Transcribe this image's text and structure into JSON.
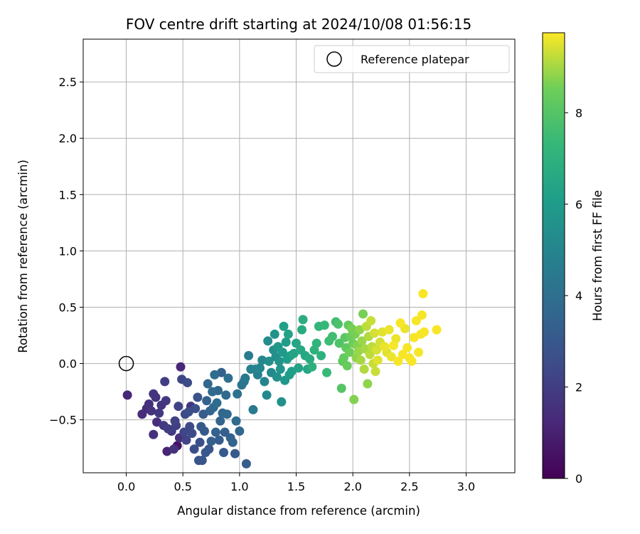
{
  "chart_data": {
    "type": "scatter",
    "title": "FOV centre drift starting at 2024/10/08 01:56:15",
    "xlabel": "Angular distance from reference (arcmin)",
    "ylabel": "Rotation from reference (arcmin)",
    "xlim": [
      -0.38,
      3.43
    ],
    "ylim": [
      -0.97,
      2.88
    ],
    "xticks": [
      0.0,
      0.5,
      1.0,
      1.5,
      2.0,
      2.5,
      3.0
    ],
    "yticks": [
      -0.5,
      0.0,
      0.5,
      1.0,
      1.5,
      2.0,
      2.5
    ],
    "xtick_labels": [
      "0.0",
      "0.5",
      "1.0",
      "1.5",
      "2.0",
      "2.5",
      "3.0"
    ],
    "ytick_labels": [
      "−0.5",
      "0.0",
      "0.5",
      "1.0",
      "1.5",
      "2.0",
      "2.5"
    ],
    "grid": true,
    "colormap": "viridis",
    "colorbar": {
      "label": "Hours from first FF file",
      "range": [
        0,
        9.75
      ],
      "ticks": [
        0,
        2,
        4,
        6,
        8
      ],
      "tick_labels": [
        "0",
        "2",
        "4",
        "6",
        "8"
      ]
    },
    "legend": {
      "position": "top-right",
      "entries": [
        {
          "label": "Reference platepar",
          "marker": "open-circle"
        }
      ]
    },
    "reference_point": {
      "x": 0.0,
      "y": 0.0
    },
    "points": [
      [
        0.01,
        -0.28,
        1.2
      ],
      [
        0.14,
        -0.45,
        1.4
      ],
      [
        0.18,
        -0.4,
        1.3
      ],
      [
        0.2,
        -0.36,
        1.5
      ],
      [
        0.22,
        -0.42,
        1.6
      ],
      [
        0.24,
        -0.63,
        1.5
      ],
      [
        0.24,
        -0.27,
        1.7
      ],
      [
        0.26,
        -0.3,
        1.6
      ],
      [
        0.27,
        -0.52,
        1.4
      ],
      [
        0.29,
        -0.44,
        1.8
      ],
      [
        0.31,
        -0.37,
        1.7
      ],
      [
        0.33,
        -0.55,
        1.9
      ],
      [
        0.34,
        -0.16,
        2.0
      ],
      [
        0.35,
        -0.33,
        1.8
      ],
      [
        0.36,
        -0.78,
        1.1
      ],
      [
        0.37,
        -0.58,
        2.0
      ],
      [
        0.4,
        -0.6,
        1.9
      ],
      [
        0.42,
        -0.76,
        1.6
      ],
      [
        0.43,
        -0.51,
        2.1
      ],
      [
        0.44,
        -0.55,
        2.0
      ],
      [
        0.45,
        -0.73,
        0.6
      ],
      [
        0.46,
        -0.38,
        2.2
      ],
      [
        0.47,
        -0.66,
        1.5
      ],
      [
        0.48,
        -0.03,
        1.2
      ],
      [
        0.49,
        -0.14,
        2.3
      ],
      [
        0.51,
        -0.61,
        2.3
      ],
      [
        0.52,
        -0.45,
        2.4
      ],
      [
        0.53,
        -0.68,
        2.2
      ],
      [
        0.54,
        -0.17,
        2.5
      ],
      [
        0.55,
        -0.43,
        2.6
      ],
      [
        0.56,
        -0.56,
        2.4
      ],
      [
        0.57,
        -0.38,
        1.7
      ],
      [
        0.58,
        -0.62,
        2.5
      ],
      [
        0.6,
        -0.76,
        2.6
      ],
      [
        0.61,
        -0.4,
        2.7
      ],
      [
        0.63,
        -0.3,
        2.8
      ],
      [
        0.64,
        -0.86,
        2.9
      ],
      [
        0.65,
        -0.7,
        2.7
      ],
      [
        0.66,
        -0.56,
        3.0
      ],
      [
        0.67,
        -0.86,
        2.8
      ],
      [
        0.68,
        -0.45,
        3.2
      ],
      [
        0.69,
        -0.6,
        3.1
      ],
      [
        0.7,
        -0.79,
        3.0
      ],
      [
        0.71,
        -0.33,
        3.4
      ],
      [
        0.72,
        -0.18,
        3.6
      ],
      [
        0.73,
        -0.76,
        2.9
      ],
      [
        0.74,
        -0.42,
        3.5
      ],
      [
        0.75,
        -0.69,
        3.3
      ],
      [
        0.76,
        -0.25,
        3.8
      ],
      [
        0.77,
        -0.39,
        3.7
      ],
      [
        0.78,
        -0.1,
        3.9
      ],
      [
        0.79,
        -0.61,
        3.4
      ],
      [
        0.8,
        -0.35,
        3.9
      ],
      [
        0.81,
        -0.24,
        3.7
      ],
      [
        0.82,
        -0.68,
        3.2
      ],
      [
        0.83,
        -0.51,
        3.5
      ],
      [
        0.84,
        -0.08,
        3.4
      ],
      [
        0.85,
        -0.44,
        3.6
      ],
      [
        0.86,
        -0.79,
        3.1
      ],
      [
        0.87,
        -0.61,
        3.3
      ],
      [
        0.88,
        -0.28,
        3.8
      ],
      [
        0.89,
        -0.45,
        3.7
      ],
      [
        0.9,
        -0.13,
        4.0
      ],
      [
        0.92,
        -0.66,
        3.4
      ],
      [
        0.94,
        -0.7,
        3.5
      ],
      [
        0.96,
        -0.8,
        3.1
      ],
      [
        0.97,
        -0.51,
        3.8
      ],
      [
        0.98,
        -0.27,
        4.1
      ],
      [
        1.0,
        -0.6,
        3.6
      ],
      [
        1.02,
        -0.19,
        4.2
      ],
      [
        1.04,
        -0.16,
        4.3
      ],
      [
        1.05,
        -0.13,
        4.4
      ],
      [
        1.06,
        -0.89,
        3.2
      ],
      [
        1.08,
        0.07,
        4.6
      ],
      [
        1.1,
        -0.05,
        4.8
      ],
      [
        1.12,
        -0.41,
        4.5
      ],
      [
        1.14,
        -0.05,
        4.9
      ],
      [
        1.16,
        -0.1,
        4.7
      ],
      [
        1.18,
        -0.04,
        5.0
      ],
      [
        1.2,
        0.03,
        5.1
      ],
      [
        1.22,
        -0.16,
        5.0
      ],
      [
        1.24,
        -0.28,
        5.2
      ],
      [
        1.25,
        0.2,
        5.3
      ],
      [
        1.26,
        0.02,
        5.4
      ],
      [
        1.28,
        -0.08,
        5.2
      ],
      [
        1.3,
        0.12,
        5.5
      ],
      [
        1.31,
        0.26,
        5.6
      ],
      [
        1.32,
        0.06,
        5.4
      ],
      [
        1.33,
        -0.12,
        5.5
      ],
      [
        1.34,
        0.15,
        5.8
      ],
      [
        1.35,
        0.02,
        5.6
      ],
      [
        1.36,
        -0.05,
        5.7
      ],
      [
        1.37,
        -0.34,
        5.5
      ],
      [
        1.38,
        0.1,
        5.9
      ],
      [
        1.39,
        0.33,
        6.2
      ],
      [
        1.4,
        -0.15,
        5.8
      ],
      [
        1.41,
        0.19,
        6.0
      ],
      [
        1.42,
        0.04,
        6.1
      ],
      [
        1.43,
        0.26,
        6.3
      ],
      [
        1.44,
        -0.1,
        6.0
      ],
      [
        1.45,
        0.07,
        6.2
      ],
      [
        1.46,
        -0.07,
        6.1
      ],
      [
        1.48,
        0.09,
        6.4
      ],
      [
        1.5,
        0.18,
        6.5
      ],
      [
        1.52,
        -0.04,
        6.3
      ],
      [
        1.54,
        0.12,
        6.6
      ],
      [
        1.55,
        0.3,
        6.7
      ],
      [
        1.56,
        0.39,
        6.8
      ],
      [
        1.58,
        0.07,
        6.6
      ],
      [
        1.6,
        -0.05,
        6.5
      ],
      [
        1.62,
        0.04,
        6.7
      ],
      [
        1.64,
        -0.03,
        6.9
      ],
      [
        1.66,
        0.12,
        7.0
      ],
      [
        1.68,
        0.18,
        7.1
      ],
      [
        1.7,
        0.33,
        7.2
      ],
      [
        1.72,
        0.07,
        7.0
      ],
      [
        1.75,
        0.34,
        7.3
      ],
      [
        1.77,
        -0.08,
        7.4
      ],
      [
        1.79,
        0.2,
        7.5
      ],
      [
        1.82,
        0.24,
        7.6
      ],
      [
        1.85,
        0.37,
        7.6
      ],
      [
        1.87,
        0.35,
        7.8
      ],
      [
        1.88,
        0.18,
        7.9
      ],
      [
        1.9,
        -0.22,
        8.0
      ],
      [
        1.91,
        0.02,
        8.2
      ],
      [
        1.92,
        0.05,
        8.3
      ],
      [
        1.93,
        0.23,
        8.1
      ],
      [
        1.94,
        0.14,
        8.2
      ],
      [
        1.95,
        -0.02,
        8.4
      ],
      [
        1.96,
        0.34,
        8.3
      ],
      [
        1.97,
        0.1,
        8.5
      ],
      [
        1.98,
        0.24,
        8.4
      ],
      [
        1.99,
        0.31,
        8.6
      ],
      [
        2.0,
        0.18,
        8.5
      ],
      [
        2.01,
        -0.32,
        8.7
      ],
      [
        2.02,
        0.26,
        8.6
      ],
      [
        2.03,
        0.05,
        8.8
      ],
      [
        2.04,
        0.16,
        8.7
      ],
      [
        2.05,
        0.11,
        8.9
      ],
      [
        2.06,
        0.3,
        8.8
      ],
      [
        2.07,
        0.03,
        9.0
      ],
      [
        2.08,
        0.2,
        8.9
      ],
      [
        2.09,
        0.44,
        8.6
      ],
      [
        2.1,
        -0.05,
        9.1
      ],
      [
        2.11,
        0.13,
        9.0
      ],
      [
        2.12,
        0.33,
        9.2
      ],
      [
        2.13,
        -0.18,
        8.8
      ],
      [
        2.14,
        0.24,
        9.1
      ],
      [
        2.15,
        0.08,
        9.2
      ],
      [
        2.16,
        0.38,
        9.3
      ],
      [
        2.17,
        0.15,
        9.2
      ],
      [
        2.18,
        0.0,
        9.3
      ],
      [
        2.19,
        0.27,
        9.4
      ],
      [
        2.2,
        -0.07,
        9.3
      ],
      [
        2.21,
        0.12,
        9.4
      ],
      [
        2.22,
        0.03,
        9.5
      ],
      [
        2.24,
        0.19,
        9.4
      ],
      [
        2.26,
        0.28,
        9.5
      ],
      [
        2.28,
        0.15,
        9.6
      ],
      [
        2.3,
        0.1,
        9.5
      ],
      [
        2.32,
        0.3,
        9.6
      ],
      [
        2.34,
        0.06,
        9.6
      ],
      [
        2.36,
        0.16,
        9.7
      ],
      [
        2.38,
        0.22,
        9.6
      ],
      [
        2.4,
        0.02,
        9.7
      ],
      [
        2.42,
        0.36,
        9.7
      ],
      [
        2.44,
        0.08,
        9.7
      ],
      [
        2.46,
        0.31,
        9.6
      ],
      [
        2.48,
        0.14,
        9.7
      ],
      [
        2.5,
        0.05,
        9.7
      ],
      [
        2.52,
        0.02,
        9.7
      ],
      [
        2.54,
        0.23,
        9.7
      ],
      [
        2.56,
        0.38,
        9.7
      ],
      [
        2.58,
        0.1,
        9.7
      ],
      [
        2.6,
        0.26,
        9.7
      ],
      [
        2.61,
        0.43,
        9.7
      ],
      [
        2.62,
        0.62,
        9.7
      ],
      [
        2.63,
        0.28,
        9.7
      ],
      [
        2.74,
        0.3,
        9.7
      ]
    ]
  }
}
